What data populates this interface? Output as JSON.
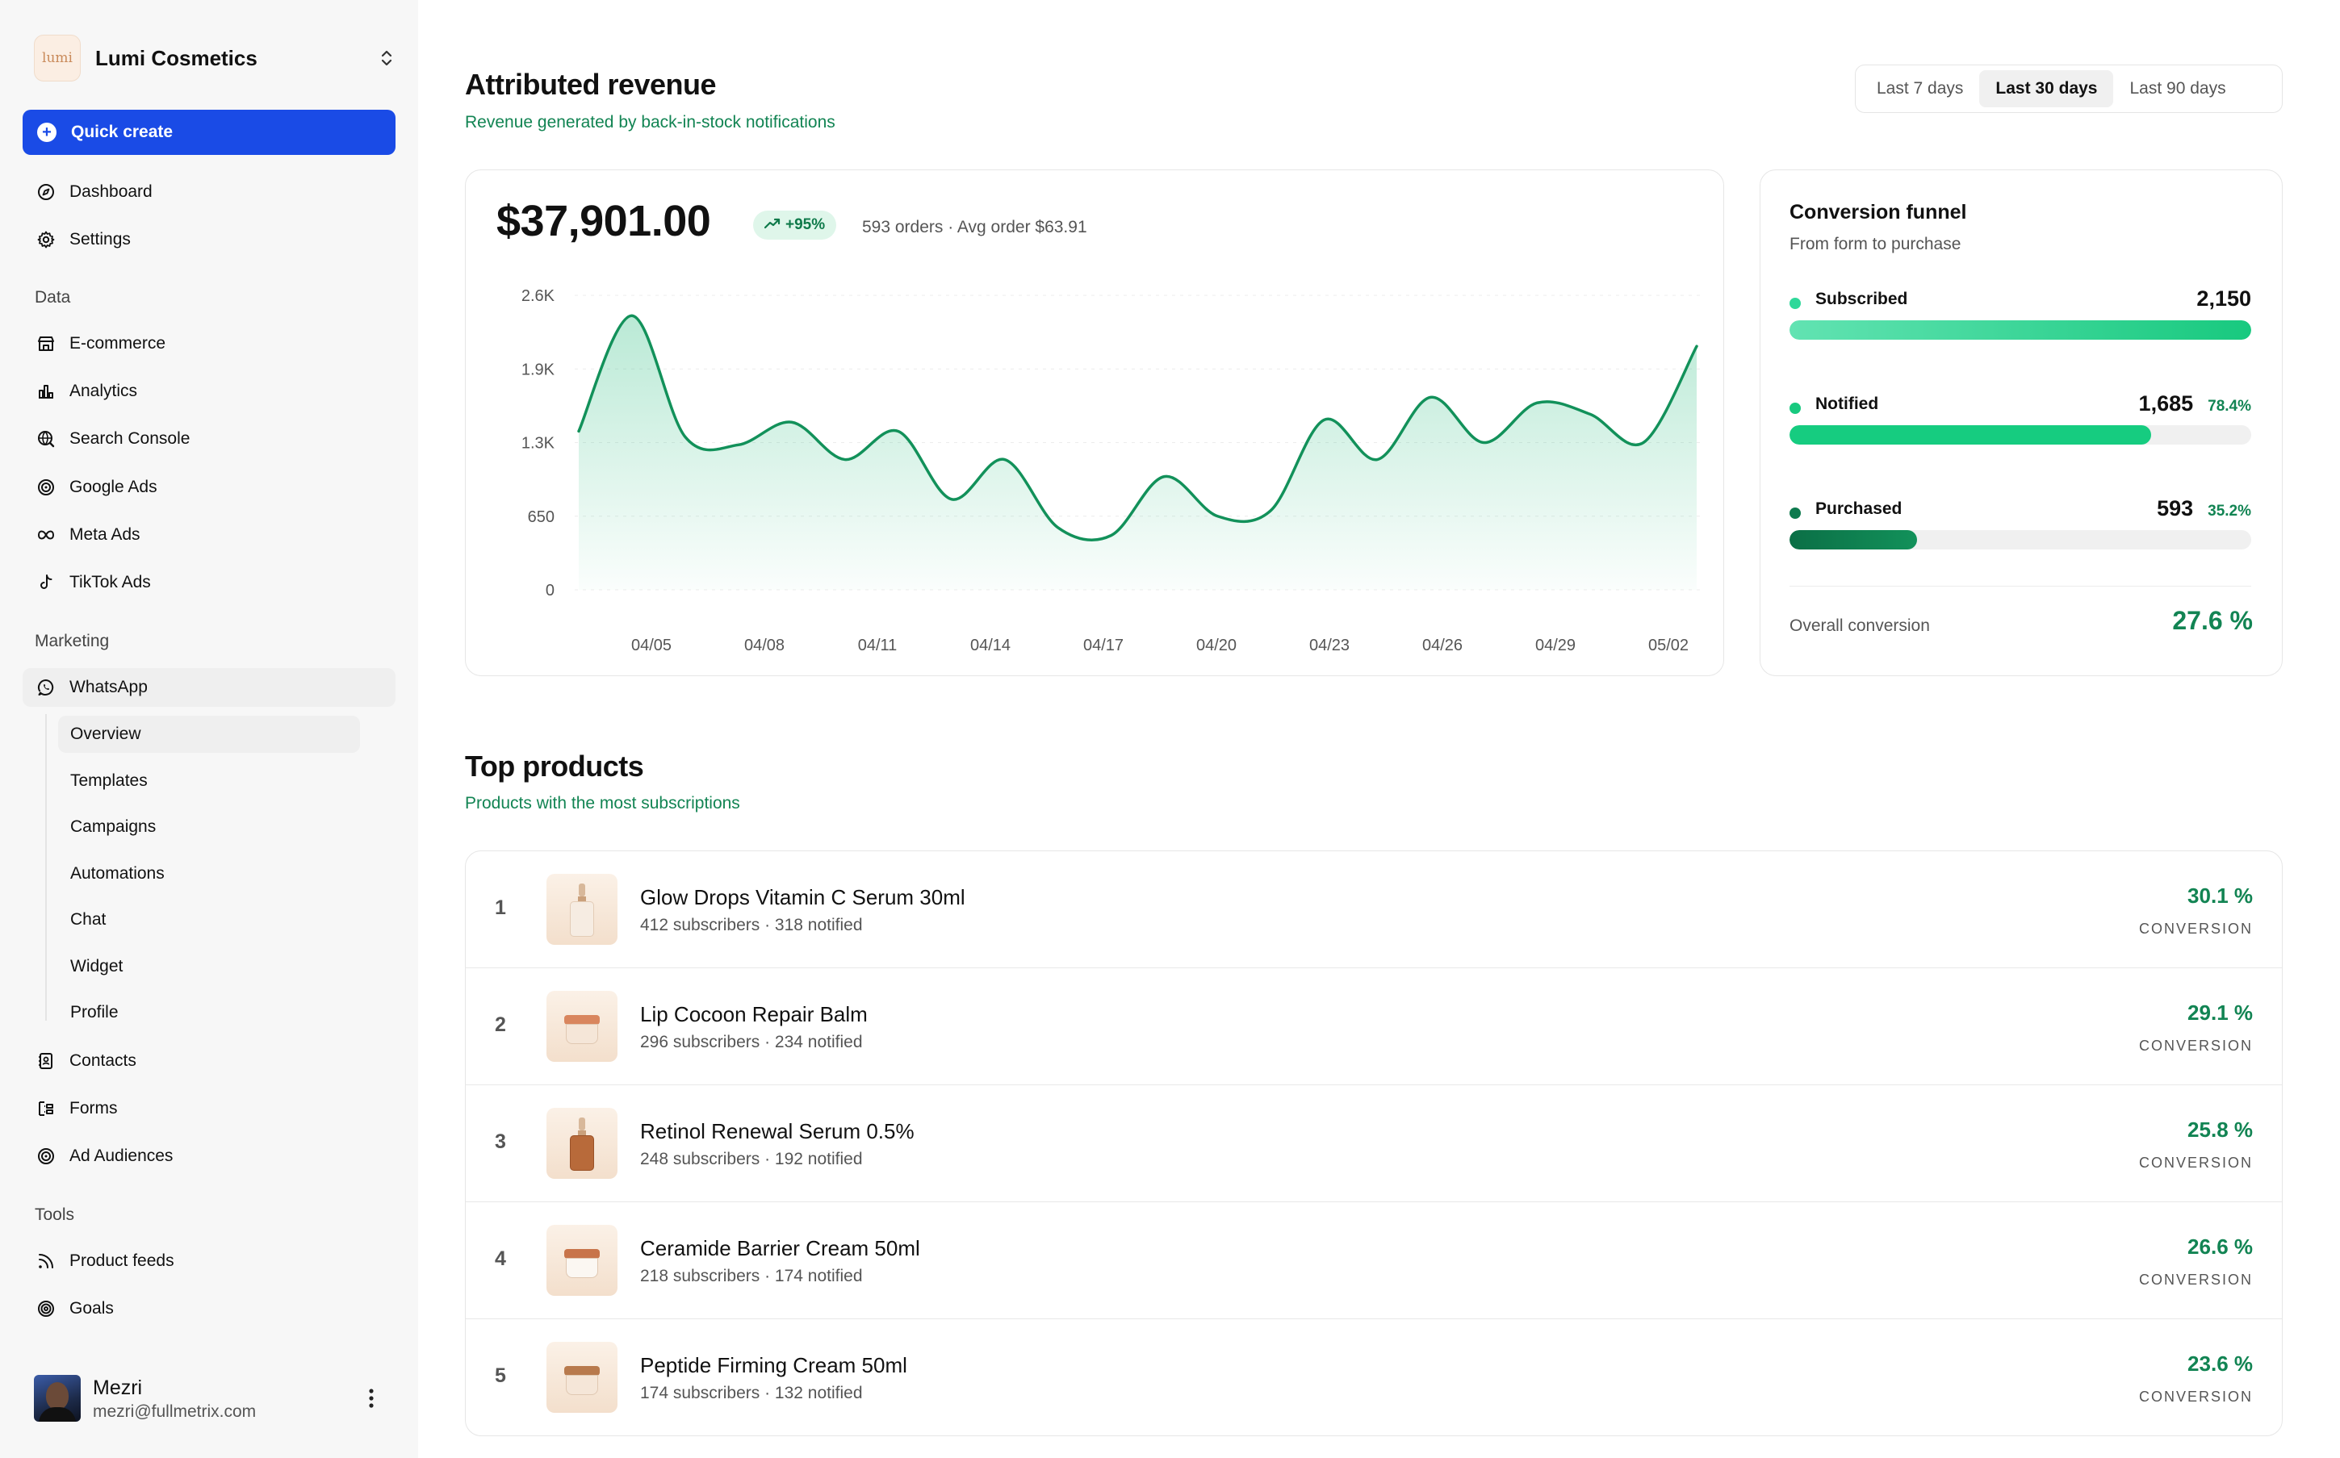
{
  "brand": {
    "name": "Lumi Cosmetics",
    "logo_text": "lumi"
  },
  "quick_create": "Quick create",
  "nav": {
    "top": [
      {
        "label": "Dashboard",
        "icon": "compass-icon"
      },
      {
        "label": "Settings",
        "icon": "gear-icon"
      }
    ],
    "data_label": "Data",
    "data": [
      {
        "label": "E-commerce",
        "icon": "store-icon"
      },
      {
        "label": "Analytics",
        "icon": "bar-chart-icon"
      },
      {
        "label": "Search Console",
        "icon": "globe-search-icon"
      },
      {
        "label": "Google Ads",
        "icon": "target-icon"
      },
      {
        "label": "Meta Ads",
        "icon": "infinity-icon"
      },
      {
        "label": "TikTok Ads",
        "icon": "tiktok-icon"
      }
    ],
    "marketing_label": "Marketing",
    "whatsapp": "WhatsApp",
    "whatsapp_sub": [
      "Overview",
      "Templates",
      "Campaigns",
      "Automations",
      "Chat",
      "Widget",
      "Profile"
    ],
    "marketing_more": [
      {
        "label": "Contacts",
        "icon": "contacts-icon"
      },
      {
        "label": "Forms",
        "icon": "form-icon"
      },
      {
        "label": "Ad Audiences",
        "icon": "target-icon"
      }
    ],
    "tools_label": "Tools",
    "tools": [
      {
        "label": "Product feeds",
        "icon": "rss-icon"
      },
      {
        "label": "Goals",
        "icon": "goal-icon"
      }
    ]
  },
  "user": {
    "name": "Mezri",
    "email": "mezri@fullmetrix.com"
  },
  "revenue": {
    "title": "Attributed revenue",
    "subtitle": "Revenue generated by back-in-stock notifications",
    "ranges": [
      "Last 7 days",
      "Last 30 days",
      "Last 90 days"
    ],
    "active_range": "Last 30 days",
    "total": "$37,901.00",
    "change": "+95%",
    "meta": "593 orders · Avg order $63.91"
  },
  "chart_data": {
    "type": "area",
    "x_ticks": [
      "04/05",
      "04/08",
      "04/11",
      "04/14",
      "04/17",
      "04/20",
      "04/23",
      "04/26",
      "04/29",
      "05/02"
    ],
    "y_ticks": [
      "0",
      "650",
      "1.3K",
      "1.9K",
      "2.6K"
    ],
    "ylim": [
      0,
      2600
    ],
    "values": [
      1400,
      2420,
      1350,
      1280,
      1480,
      1150,
      1400,
      800,
      1150,
      550,
      480,
      1000,
      650,
      700,
      1500,
      1150,
      1700,
      1300,
      1650,
      1550,
      1300,
      2150
    ],
    "color": "#12915a"
  },
  "funnel": {
    "title": "Conversion funnel",
    "subtitle": "From form to purchase",
    "stages": [
      {
        "label": "Subscribed",
        "value": "2,150",
        "pct": "",
        "fraction": 1.0,
        "color": "#2fd89a"
      },
      {
        "label": "Notified",
        "value": "1,685",
        "pct": "78.4%",
        "fraction": 0.784,
        "color": "#18c97f"
      },
      {
        "label": "Purchased",
        "value": "593",
        "pct": "35.2%",
        "fraction": 0.276,
        "color": "#0e7a4e"
      }
    ],
    "overall_label": "Overall conversion",
    "overall_value": "27.6 %"
  },
  "products": {
    "title": "Top products",
    "subtitle": "Products with the most subscriptions",
    "conversion_label": "CONVERSION",
    "items": [
      {
        "rank": "1",
        "name": "Glow Drops Vitamin C Serum 30ml",
        "meta": "412 subscribers · 318 notified",
        "conversion": "30.1 %",
        "thumb": "serum-bottle"
      },
      {
        "rank": "2",
        "name": "Lip Cocoon Repair Balm",
        "meta": "296 subscribers · 234 notified",
        "conversion": "29.1 %",
        "thumb": "balm-jar"
      },
      {
        "rank": "3",
        "name": "Retinol Renewal Serum 0.5%",
        "meta": "248 subscribers · 192 notified",
        "conversion": "25.8 %",
        "thumb": "amber-bottle"
      },
      {
        "rank": "4",
        "name": "Ceramide Barrier Cream 50ml",
        "meta": "218 subscribers · 174 notified",
        "conversion": "26.6 %",
        "thumb": "cream-jar"
      },
      {
        "rank": "5",
        "name": "Peptide Firming Cream 50ml",
        "meta": "174 subscribers · 132 notified",
        "conversion": "23.6 %",
        "thumb": "copper-jar"
      }
    ]
  }
}
